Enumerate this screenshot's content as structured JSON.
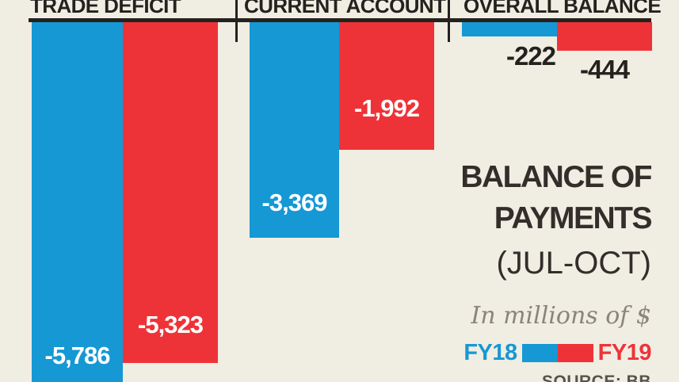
{
  "colors": {
    "background": "#f0ede3",
    "ink": "#25211e",
    "title_dark": "#332e2a",
    "note_gray": "#8b8478",
    "source_gray": "#57534b",
    "fy18_blue": "#1598d4",
    "fy19_red": "#ee3338"
  },
  "chart_data": {
    "type": "bar",
    "title": "BALANCE OF PAYMENTS",
    "subtitle": "(JUL-OCT)",
    "unit_note": "In millions of $",
    "source": "SOURCE: BB",
    "categories": [
      "TRADE DEFICIT",
      "CURRENT ACCOUNT",
      "OVERALL BALANCE"
    ],
    "series": [
      {
        "name": "FY18",
        "color": "#1598d4",
        "values": [
          -5786,
          -3369,
          -222
        ],
        "labels": [
          "-5,786",
          "-3,369",
          "-222"
        ]
      },
      {
        "name": "FY19",
        "color": "#ee3338",
        "values": [
          -5323,
          -1992,
          -444
        ],
        "labels": [
          "-5,323",
          "-1,992",
          "-444"
        ]
      }
    ],
    "ylim": [
      -5900,
      0
    ],
    "orientation": "columns extend downward from zero baseline",
    "legend_position": "bottom-right",
    "grid": "off"
  }
}
